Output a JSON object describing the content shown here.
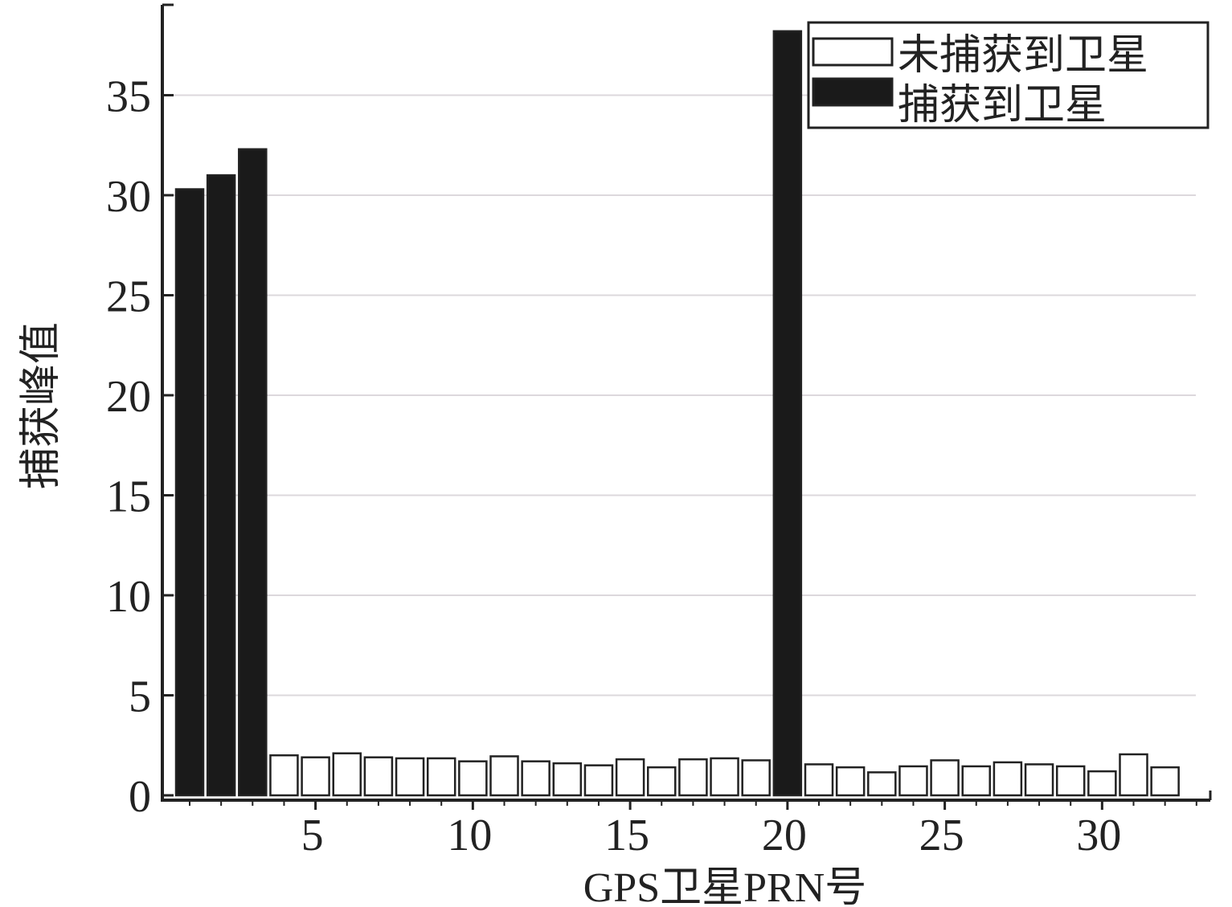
{
  "chart_data": {
    "type": "bar",
    "title": "",
    "xlabel": "GPS卫星PRN号",
    "ylabel": "捕获峰值",
    "x_ticks": [
      "5",
      "10",
      "15",
      "20",
      "25",
      "30"
    ],
    "y_ticks": [
      "0",
      "5",
      "10",
      "15",
      "20",
      "25",
      "30",
      "35"
    ],
    "ylim": [
      0,
      39
    ],
    "xlim": [
      0,
      33
    ],
    "grid": "horizontal",
    "legend_position": "top-right",
    "series": [
      {
        "name": "未捕获到卫星",
        "color": "#ffffff",
        "points": [
          {
            "x": 4,
            "y": 2.0
          },
          {
            "x": 5,
            "y": 1.9
          },
          {
            "x": 6,
            "y": 2.1
          },
          {
            "x": 7,
            "y": 1.9
          },
          {
            "x": 8,
            "y": 1.85
          },
          {
            "x": 9,
            "y": 1.85
          },
          {
            "x": 10,
            "y": 1.7
          },
          {
            "x": 11,
            "y": 1.95
          },
          {
            "x": 12,
            "y": 1.7
          },
          {
            "x": 13,
            "y": 1.6
          },
          {
            "x": 14,
            "y": 1.5
          },
          {
            "x": 15,
            "y": 1.8
          },
          {
            "x": 16,
            "y": 1.4
          },
          {
            "x": 17,
            "y": 1.8
          },
          {
            "x": 18,
            "y": 1.85
          },
          {
            "x": 19,
            "y": 1.75
          },
          {
            "x": 21,
            "y": 1.55
          },
          {
            "x": 22,
            "y": 1.4
          },
          {
            "x": 23,
            "y": 1.15
          },
          {
            "x": 24,
            "y": 1.45
          },
          {
            "x": 25,
            "y": 1.75
          },
          {
            "x": 26,
            "y": 1.45
          },
          {
            "x": 27,
            "y": 1.65
          },
          {
            "x": 28,
            "y": 1.55
          },
          {
            "x": 29,
            "y": 1.45
          },
          {
            "x": 30,
            "y": 1.2
          },
          {
            "x": 31,
            "y": 2.05
          },
          {
            "x": 32,
            "y": 1.4
          }
        ]
      },
      {
        "name": "捕获到卫星",
        "color": "#1a1a1a",
        "points": [
          {
            "x": 1,
            "y": 30.3
          },
          {
            "x": 2,
            "y": 31.0
          },
          {
            "x": 3,
            "y": 32.3
          },
          {
            "x": 20,
            "y": 38.2
          }
        ]
      }
    ]
  }
}
